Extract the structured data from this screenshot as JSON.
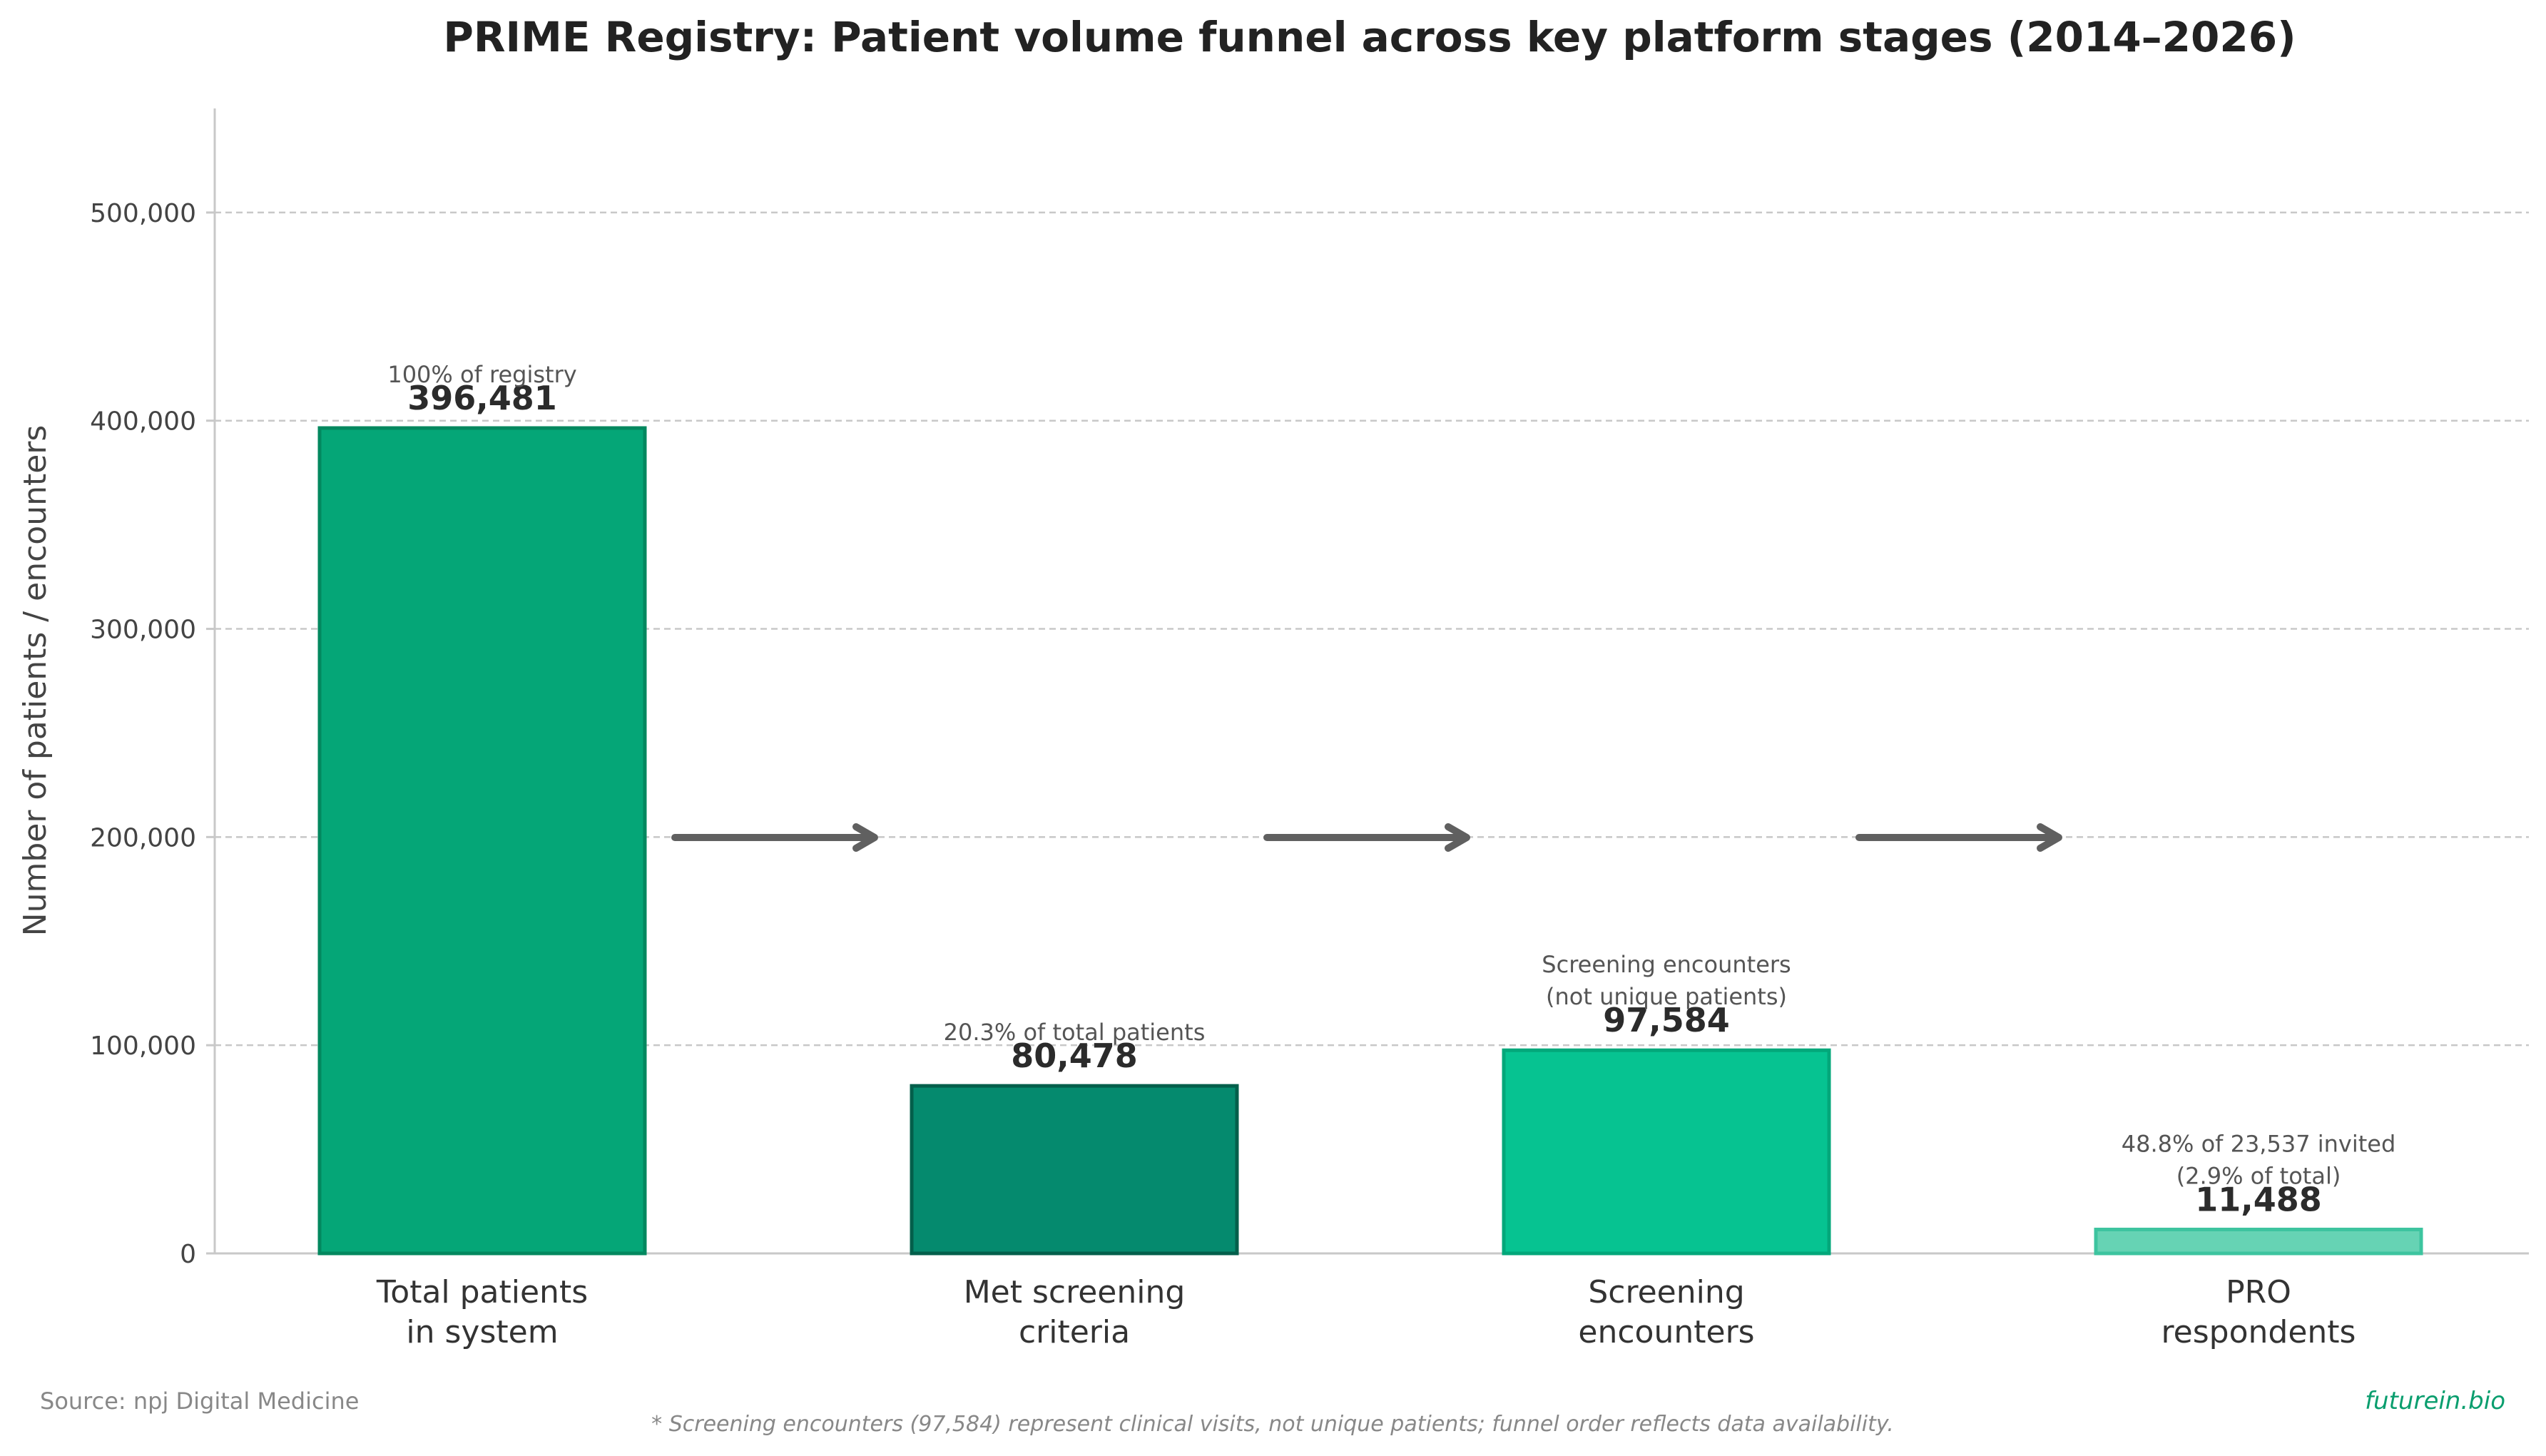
{
  "chart_data": {
    "type": "bar",
    "title": "PRIME Registry: Patient volume funnel across key platform stages (2014–2026)",
    "ylabel": "Number of patients / encounters",
    "xlabel": "",
    "ylim": [
      0,
      550000
    ],
    "yticks": [
      0,
      100000,
      200000,
      300000,
      400000,
      500000
    ],
    "ytick_labels": [
      "0",
      "100,000",
      "200,000",
      "300,000",
      "400,000",
      "500,000"
    ],
    "grid": "horizontal dashed",
    "categories": [
      [
        "Total patients",
        "in system"
      ],
      [
        "Met screening",
        "criteria"
      ],
      [
        "Screening",
        "encounters"
      ],
      [
        "PRO",
        "respondents"
      ]
    ],
    "values": [
      396481,
      80478,
      97584,
      11488
    ],
    "value_labels": [
      "396,481",
      "80,478",
      "97,584",
      "11,488"
    ],
    "annotations": [
      [
        "100% of registry"
      ],
      [
        "20.3% of total patients"
      ],
      [
        "Screening encounters",
        "(not unique patients)"
      ],
      [
        "48.8% of 23,537 invited",
        "(2.9% of total)"
      ]
    ],
    "colors": [
      "#05a677",
      "#058a6e",
      "#06c391",
      "#66d3b4"
    ],
    "edge_colors": [
      "#03885f",
      "#035f4b",
      "#03a77a",
      "#3dc49f"
    ],
    "arrow_color": "#606060"
  },
  "footer": {
    "source": "Source: npj Digital Medicine",
    "footnote": "* Screening encounters (97,584) represent clinical visits, not unique patients; funnel order reflects data availability.",
    "brand": "futurein.bio",
    "brand_color": "#0a9e6e"
  }
}
